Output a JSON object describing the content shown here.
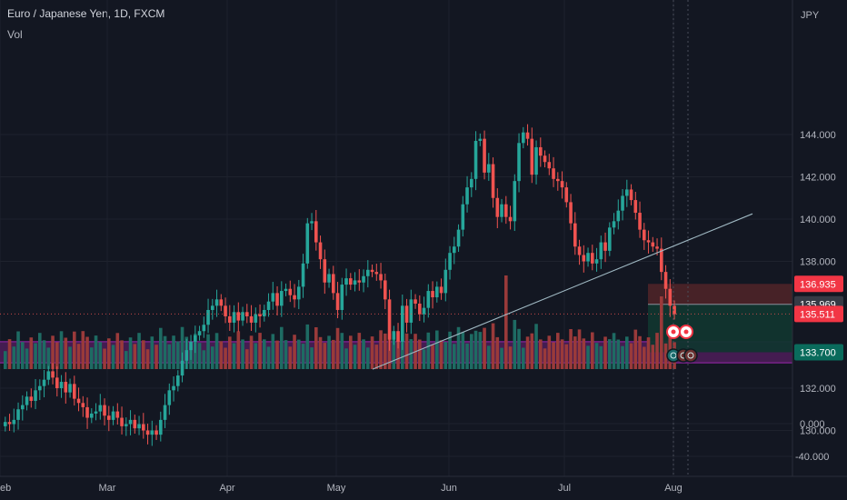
{
  "header": {
    "symbol_title": "Euro / Japanese Yen, 1D, FXCM",
    "volume_label": "Vol"
  },
  "colors": {
    "background": "#131722",
    "grid": "#1e222d",
    "up": "#26a69a",
    "down": "#ef5350",
    "vol_up": "#1e6b63",
    "vol_down": "#9a3a3a",
    "zone": "#4a1d56",
    "zone_edge": "#9c27b0",
    "trendline": "#9fb8c2",
    "stop_zone": "#4a2328",
    "target_zone": "#11352f",
    "axis_text": "#b2b5be",
    "tag_red": "#f23645",
    "tag_grey": "#363a45",
    "tag_teal": "#0a6b5c"
  },
  "chart_data": [
    {
      "type": "candlestick",
      "title": "Euro / Japanese Yen, 1D, FXCM",
      "currency": "JPY",
      "ylim": [
        129,
        146.5
      ],
      "y_ticks": [
        "144.000",
        "142.000",
        "140.000",
        "138.000",
        "132.000",
        "130.000"
      ],
      "x_ticks": [
        "Feb",
        "Mar",
        "Apr",
        "May",
        "Jun",
        "Jul",
        "Aug"
      ],
      "price_tags": [
        {
          "value": "136.935",
          "kind": "red"
        },
        {
          "value": "135.969",
          "kind": "grey"
        },
        {
          "value": "135.511",
          "kind": "red"
        },
        {
          "value": "133.700",
          "kind": "teal"
        }
      ],
      "last_price": 135.511,
      "zone": {
        "low": 133.2,
        "high": 134.2
      },
      "position": {
        "stop": 136.935,
        "entry": 135.969,
        "target": 133.7
      },
      "trendline": {
        "start": 132.9,
        "end": 140.25
      },
      "close_series": [
        130.4,
        130.3,
        130.5,
        131.0,
        131.2,
        131.6,
        131.4,
        131.9,
        132.1,
        132.4,
        132.8,
        132.5,
        132.0,
        132.3,
        131.8,
        132.2,
        131.5,
        131.3,
        131.1,
        130.6,
        130.8,
        130.9,
        131.2,
        130.7,
        130.5,
        130.9,
        130.6,
        130.2,
        130.3,
        130.5,
        130.1,
        130.3,
        130.0,
        129.8,
        130.0,
        129.8,
        130.5,
        131.2,
        131.9,
        132.1,
        132.6,
        133.3,
        133.8,
        134.2,
        134.5,
        134.7,
        135.0,
        135.7,
        135.9,
        136.2,
        135.9,
        135.4,
        135.1,
        135.6,
        135.2,
        135.6,
        135.4,
        135.1,
        135.5,
        135.4,
        135.7,
        136.1,
        136.5,
        135.9,
        136.6,
        136.7,
        136.4,
        136.2,
        136.8,
        137.9,
        139.8,
        139.9,
        138.9,
        138.1,
        137.0,
        137.4,
        136.5,
        135.7,
        136.9,
        137.2,
        136.9,
        137.1,
        137.0,
        137.3,
        137.6,
        137.5,
        137.4,
        137.1,
        136.2,
        134.3,
        134.7,
        134.2,
        135.9,
        135.1,
        136.2,
        136.0,
        135.5,
        135.8,
        136.6,
        136.3,
        136.8,
        136.5,
        137.6,
        138.4,
        138.7,
        139.5,
        140.7,
        141.5,
        141.9,
        143.7,
        143.8,
        142.2,
        142.6,
        141.0,
        140.1,
        140.7,
        140.1,
        139.9,
        141.8,
        143.6,
        144.1,
        143.8,
        142.1,
        143.4,
        143.0,
        142.7,
        142.4,
        141.9,
        141.8,
        141.5,
        140.8,
        139.8,
        138.7,
        138.3,
        138.0,
        138.4,
        137.9,
        138.1,
        138.9,
        138.5,
        139.6,
        139.9,
        140.4,
        141.1,
        141.4,
        140.9,
        140.3,
        139.5,
        139.0,
        138.9,
        138.7,
        138.6,
        137.5,
        136.7,
        135.9,
        135.5
      ],
      "volume_spikes": [
        {
          "category": "May–Jun",
          "level": "high"
        },
        {
          "category": "Jul–Aug",
          "level": "high"
        }
      ]
    },
    {
      "type": "bar",
      "name": "Vol",
      "y_ticks": [
        "0.000",
        "-40.000"
      ]
    }
  ]
}
